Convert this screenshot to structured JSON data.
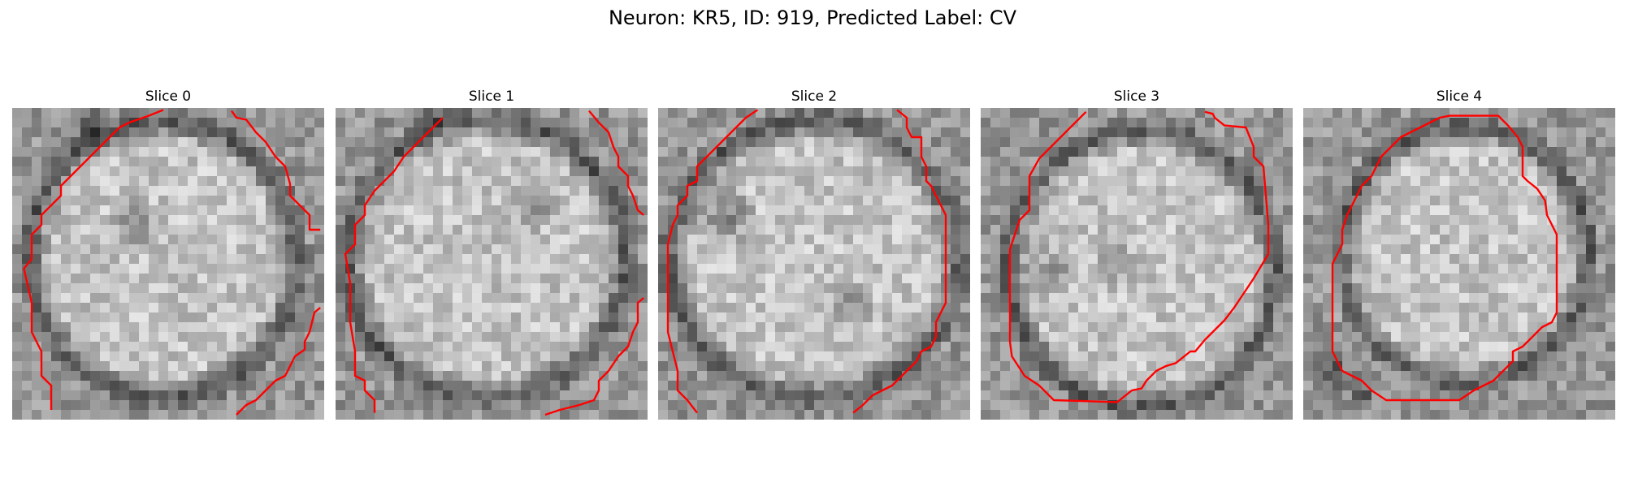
{
  "figure": {
    "suptitle": "Neuron: KR5, ID: 919, Predicted Label: CV"
  },
  "panels": [
    {
      "title": "Slice 0"
    },
    {
      "title": "Slice 1"
    },
    {
      "title": "Slice 2"
    },
    {
      "title": "Slice 3"
    },
    {
      "title": "Slice 4"
    }
  ],
  "colors": {
    "contour": "#ff0000"
  }
}
